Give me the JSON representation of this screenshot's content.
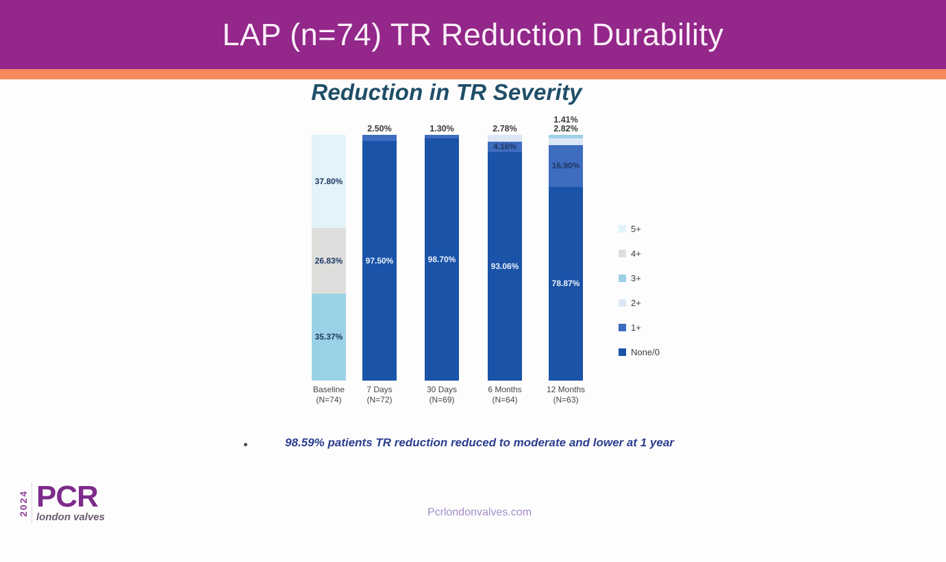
{
  "header": {
    "title": "LAP (n=74) TR Reduction Durability"
  },
  "bullet": {
    "text": "98.59% patients TR reduction reduced to moderate and lower at 1 year"
  },
  "footer": {
    "url": "Pcrlondonvalves.com",
    "logo": {
      "year": "2024",
      "brand": "PCR",
      "subtitle": "london valves"
    }
  },
  "colors": {
    "header_bg": "#93278A",
    "accent_stripe": "#F68A5E",
    "chart_title": "#1F4E68",
    "bullet_text": "#2B3D8F",
    "logo_purple": "#7D2B8B",
    "url_text": "#A38CC6"
  },
  "chart_data": {
    "type": "bar",
    "stacked": true,
    "title": "Reduction in TR Severity",
    "ylim": [
      0,
      100
    ],
    "grid": false,
    "legend_position": "right",
    "legend": [
      {
        "label": "5+",
        "color": "#E2F3FA"
      },
      {
        "label": "4+",
        "color": "#DEDEDC"
      },
      {
        "label": "3+",
        "color": "#9BD1E6"
      },
      {
        "label": "2+",
        "color": "#DCE7F5"
      },
      {
        "label": "1+",
        "color": "#3E6CBF"
      },
      {
        "label": "None/0",
        "color": "#1A53A8"
      }
    ],
    "bars": [
      {
        "category": "Baseline",
        "n_label": "(N=74)",
        "above_labels": [],
        "segments": [
          {
            "grade": "5+",
            "value": 37.8,
            "label": "37.80%",
            "label_color": "dark"
          },
          {
            "grade": "4+",
            "value": 26.83,
            "label": "26.83%",
            "label_color": "dark"
          },
          {
            "grade": "3+",
            "value": 35.37,
            "label": "35.37%",
            "label_color": "dark"
          }
        ]
      },
      {
        "category": "7 Days",
        "n_label": "(N=72)",
        "above_labels": [
          "2.50%"
        ],
        "segments": [
          {
            "grade": "1+",
            "value": 2.5,
            "label": "",
            "label_color": ""
          },
          {
            "grade": "None/0",
            "value": 97.5,
            "label": "97.50%",
            "label_color": "white"
          }
        ]
      },
      {
        "category": "30 Days",
        "n_label": "(N=69)",
        "above_labels": [
          "1.30%"
        ],
        "segments": [
          {
            "grade": "1+",
            "value": 1.3,
            "label": "",
            "label_color": ""
          },
          {
            "grade": "None/0",
            "value": 98.7,
            "label": "98.70%",
            "label_color": "white"
          }
        ]
      },
      {
        "category": "6 Months",
        "n_label": "(N=64)",
        "above_labels": [
          "2.78%"
        ],
        "segments": [
          {
            "grade": "2+",
            "value": 2.78,
            "label": "",
            "label_color": ""
          },
          {
            "grade": "1+",
            "value": 4.16,
            "label": "4.16%",
            "label_color": "dark"
          },
          {
            "grade": "None/0",
            "value": 93.06,
            "label": "93.06%",
            "label_color": "white"
          }
        ]
      },
      {
        "category": "12 Months",
        "n_label": "(N=63)",
        "above_labels": [
          "1.41%",
          "2.82%"
        ],
        "segments": [
          {
            "grade": "3+",
            "value": 1.41,
            "label": "",
            "label_color": ""
          },
          {
            "grade": "2+",
            "value": 2.82,
            "label": "",
            "label_color": ""
          },
          {
            "grade": "1+",
            "value": 16.9,
            "label": "16.90%",
            "label_color": "dark"
          },
          {
            "grade": "None/0",
            "value": 78.87,
            "label": "78.87%",
            "label_color": "white"
          }
        ]
      }
    ]
  }
}
